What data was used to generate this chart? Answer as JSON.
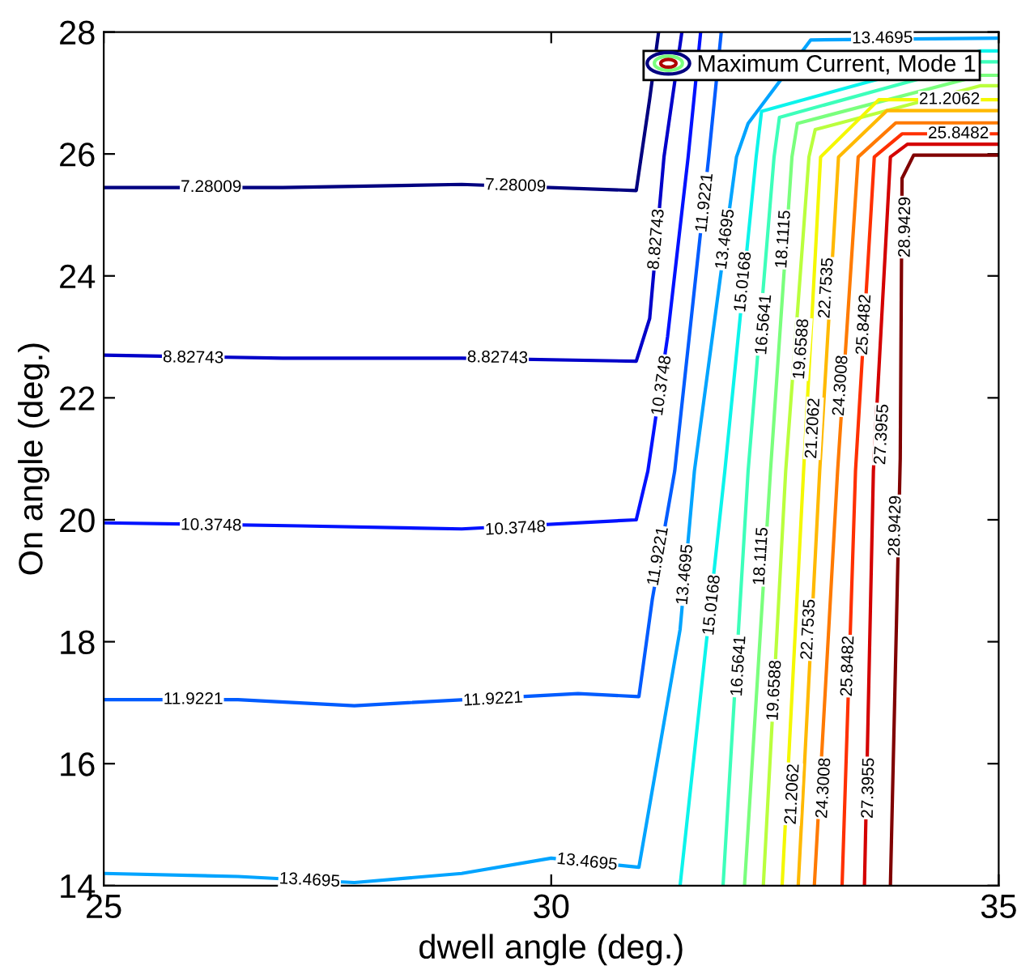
{
  "chart_data": {
    "type": "line",
    "xlabel": "dwell angle (deg.)",
    "ylabel": "On angle (deg.)",
    "legend_title": "Maximum Current, Mode 1",
    "grid": false,
    "marker": "none",
    "line_style": "solid",
    "xlim": [
      25,
      35
    ],
    "xticks": [
      25,
      30,
      35
    ],
    "ylim": [
      14,
      28
    ],
    "yticks": [
      14,
      16,
      18,
      20,
      22,
      24,
      26,
      28
    ],
    "series": [
      {
        "color": "#000080",
        "x": [
          25,
          27,
          29,
          30.95,
          31.1,
          31.2
        ],
        "values": [
          25.45,
          25.45,
          25.5,
          25.4,
          26.9,
          28
        ]
      },
      {
        "color": "#0000c9",
        "x": [
          25,
          27,
          29,
          30.95,
          31.1,
          31.26,
          31.46
        ],
        "values": [
          22.7,
          22.65,
          22.65,
          22.6,
          23.3,
          25.95,
          28
        ]
      },
      {
        "color": "#0012ff",
        "x": [
          25,
          27.2,
          29,
          30.95,
          31.08,
          31.3,
          31.53,
          31.67
        ],
        "values": [
          19.95,
          19.9,
          19.85,
          20.0,
          20.8,
          23,
          25.95,
          28
        ]
      },
      {
        "color": "#005cff",
        "x": [
          25,
          26.5,
          27.8,
          28.4,
          30.3,
          30.98,
          31.13,
          31.38,
          31.76,
          31.9
        ],
        "values": [
          17.05,
          17.05,
          16.95,
          17.0,
          17.15,
          17.1,
          18.7,
          20.8,
          25.95,
          28
        ]
      },
      {
        "color": "#00a4ff",
        "x": [
          25,
          26.5,
          27.8,
          29,
          30,
          30.98,
          31.44,
          31.6,
          32.07,
          32.2,
          32.9,
          35
        ],
        "values": [
          14.2,
          14.15,
          14.05,
          14.2,
          14.45,
          14.3,
          18.2,
          20.8,
          25.95,
          26.5,
          27.87,
          27.9
        ]
      },
      {
        "color": "#0cf4eb",
        "x": [
          31.44,
          31.94,
          32.29,
          32.35,
          34.8,
          35
        ],
        "values": [
          14,
          20.8,
          25.95,
          26.7,
          27.69,
          27.69
        ]
      },
      {
        "color": "#3dffba",
        "x": [
          31.92,
          32.2,
          32.49,
          32.55,
          34.8,
          35
        ],
        "values": [
          14,
          20.8,
          25.95,
          26.6,
          27.51,
          27.51
        ]
      },
      {
        "color": "#7aff7d",
        "x": [
          32.16,
          32.45,
          32.69,
          32.75,
          34.8,
          35
        ],
        "values": [
          14,
          20.8,
          25.95,
          26.5,
          27.29,
          27.29
        ]
      },
      {
        "color": "#baff3d",
        "x": [
          32.37,
          32.62,
          32.88,
          32.95,
          34.8,
          35
        ],
        "values": [
          14,
          20.8,
          25.95,
          26.4,
          27.12,
          27.12
        ]
      },
      {
        "color": "#f4f802",
        "x": [
          32.58,
          32.82,
          33.01,
          33.66,
          35
        ],
        "values": [
          14,
          20.8,
          25.95,
          26.89,
          26.89
        ]
      },
      {
        "color": "#ffb900",
        "x": [
          32.76,
          33.0,
          33.21,
          33.75,
          35
        ],
        "values": [
          14,
          20.8,
          25.95,
          26.71,
          26.71
        ]
      },
      {
        "color": "#ff7a00",
        "x": [
          32.94,
          33.2,
          33.43,
          33.85,
          35
        ],
        "values": [
          14,
          20.8,
          25.95,
          26.51,
          26.51
        ]
      },
      {
        "color": "#ff3000",
        "x": [
          33.25,
          33.4,
          33.61,
          33.92,
          35
        ],
        "values": [
          14,
          20.8,
          25.95,
          26.33,
          26.33
        ]
      },
      {
        "color": "#d40000",
        "x": [
          33.5,
          33.6,
          33.79,
          33.98,
          35
        ],
        "values": [
          14,
          20.8,
          25.95,
          26.16,
          26.16
        ]
      },
      {
        "color": "#800000",
        "x": [
          33.79,
          33.9,
          33.92,
          34.05,
          35
        ],
        "values": [
          14,
          21,
          25.6,
          25.98,
          25.98
        ]
      }
    ],
    "annotations": [
      {
        "text": "7.28009",
        "x": 26.2,
        "y": 25.45
      },
      {
        "text": "7.28009",
        "x": 29.6,
        "y": 25.47
      },
      {
        "text": "8.82743",
        "x": 26.0,
        "y": 22.65
      },
      {
        "text": "8.82743",
        "x": 29.4,
        "y": 22.65
      },
      {
        "text": "8.82743",
        "x": 31.18,
        "y": 24.6
      },
      {
        "text": "10.3748",
        "x": 26.2,
        "y": 19.9
      },
      {
        "text": "10.3748",
        "x": 29.6,
        "y": 19.85
      },
      {
        "text": "10.3748",
        "x": 31.24,
        "y": 22.2
      },
      {
        "text": "11.9221",
        "x": 26.0,
        "y": 17.05
      },
      {
        "text": "11.9221",
        "x": 29.35,
        "y": 17.05
      },
      {
        "text": "11.9221",
        "x": 31.2,
        "y": 19.4
      },
      {
        "text": "11.9221",
        "x": 31.72,
        "y": 25.2
      },
      {
        "text": "13.4695",
        "x": 27.3,
        "y": 14.08
      },
      {
        "text": "13.4695",
        "x": 30.4,
        "y": 14.38
      },
      {
        "text": "13.4695",
        "x": 31.5,
        "y": 19.1
      },
      {
        "text": "13.4695",
        "x": 31.95,
        "y": 24.6
      },
      {
        "text": "13.4695",
        "x": 33.7,
        "y": 27.89
      },
      {
        "text": "15.0168",
        "x": 31.8,
        "y": 18.6
      },
      {
        "text": "15.0168",
        "x": 32.15,
        "y": 23.9
      },
      {
        "text": "16.5641",
        "x": 32.1,
        "y": 17.6
      },
      {
        "text": "16.5641",
        "x": 32.38,
        "y": 23.2
      },
      {
        "text": "18.1115",
        "x": 32.35,
        "y": 19.4
      },
      {
        "text": "18.1115",
        "x": 32.6,
        "y": 24.6
      },
      {
        "text": "19.6588",
        "x": 32.5,
        "y": 17.2
      },
      {
        "text": "19.6588",
        "x": 32.8,
        "y": 22.8
      },
      {
        "text": "21.2062",
        "x": 32.7,
        "y": 15.5
      },
      {
        "text": "21.2062",
        "x": 32.93,
        "y": 21.5
      },
      {
        "text": "21.2062",
        "x": 34.45,
        "y": 26.89
      },
      {
        "text": "22.7535",
        "x": 32.88,
        "y": 18.2
      },
      {
        "text": "22.7535",
        "x": 33.08,
        "y": 23.8
      },
      {
        "text": "24.3008",
        "x": 33.05,
        "y": 15.6
      },
      {
        "text": "24.3008",
        "x": 33.24,
        "y": 22.2
      },
      {
        "text": "25.8482",
        "x": 33.32,
        "y": 17.6
      },
      {
        "text": "25.8482",
        "x": 33.5,
        "y": 23.2
      },
      {
        "text": "25.8482",
        "x": 34.55,
        "y": 26.33
      },
      {
        "text": "27.3955",
        "x": 33.55,
        "y": 15.6
      },
      {
        "text": "27.3955",
        "x": 33.7,
        "y": 21.4
      },
      {
        "text": "28.9429",
        "x": 33.85,
        "y": 19.9
      },
      {
        "text": "28.9429",
        "x": 33.96,
        "y": 24.8
      }
    ]
  }
}
